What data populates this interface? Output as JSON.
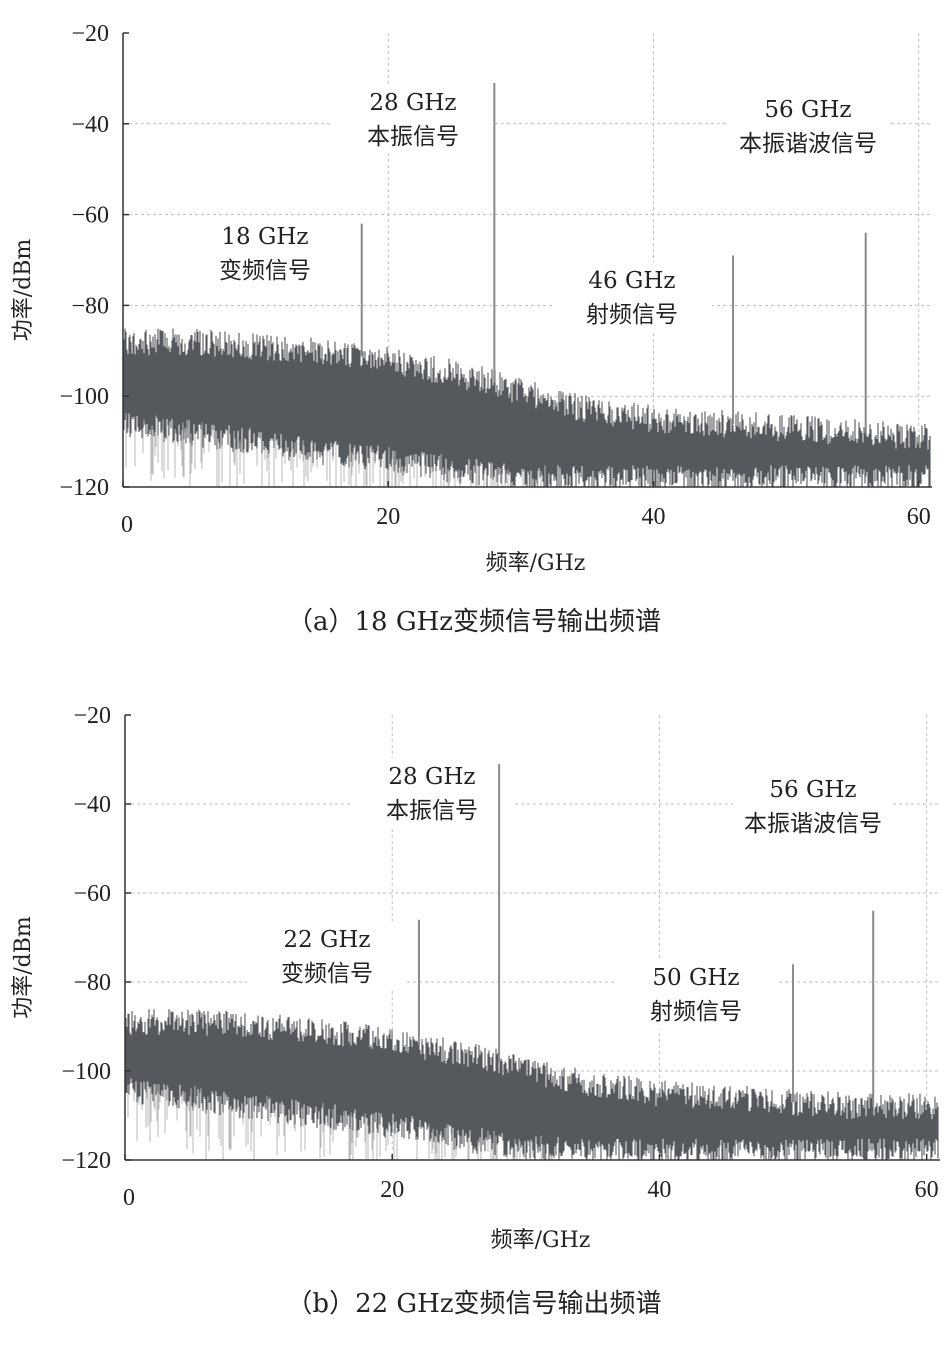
{
  "chart_data": [
    {
      "type": "line",
      "panel": "a",
      "caption": "（a）18 GHz变频信号输出频谱",
      "xlabel": "频率/GHz",
      "ylabel": "功率/dBm",
      "xlim": [
        0,
        61
      ],
      "ylim": [
        -120,
        -20
      ],
      "xticks": [
        0,
        20,
        40,
        60
      ],
      "yticks": [
        -20,
        -40,
        -60,
        -80,
        -100,
        -120
      ],
      "grid": true,
      "noise_floor": {
        "x": [
          0,
          5,
          10,
          15,
          20,
          25,
          28,
          30,
          35,
          40,
          45,
          50,
          55,
          60,
          61
        ],
        "top": [
          -88,
          -88,
          -89,
          -90,
          -92,
          -95,
          -97,
          -99,
          -103,
          -105,
          -106,
          -107,
          -108,
          -109,
          -109
        ],
        "bottom": [
          -108,
          -110,
          -112,
          -114,
          -116,
          -118,
          -119,
          -120,
          -120,
          -120,
          -120,
          -120,
          -120,
          -120,
          -120
        ]
      },
      "peaks": [
        {
          "x": 18,
          "y": -62,
          "annotation": [
            "18 GHz",
            "变频信号"
          ]
        },
        {
          "x": 28,
          "y": -31,
          "annotation": [
            "28 GHz",
            "本振信号"
          ]
        },
        {
          "x": 46,
          "y": -69,
          "annotation": [
            "46 GHz",
            "射频信号"
          ]
        },
        {
          "x": 56,
          "y": -64,
          "annotation": [
            "56 GHz",
            "本振谐波信号"
          ]
        }
      ]
    },
    {
      "type": "line",
      "panel": "b",
      "caption": "（b）22 GHz变频信号输出频谱",
      "xlabel": "频率/GHz",
      "ylabel": "功率/dBm",
      "xlim": [
        0,
        61
      ],
      "ylim": [
        -120,
        -20
      ],
      "xticks": [
        0,
        20,
        40,
        60
      ],
      "yticks": [
        -20,
        -40,
        -60,
        -80,
        -100,
        -120
      ],
      "grid": true,
      "noise_floor": {
        "x": [
          0,
          5,
          10,
          15,
          20,
          25,
          28,
          30,
          35,
          40,
          45,
          50,
          55,
          60,
          61
        ],
        "top": [
          -89,
          -89,
          -90,
          -91,
          -93,
          -96,
          -98,
          -100,
          -103,
          -105,
          -106,
          -107,
          -108,
          -108,
          -108
        ],
        "bottom": [
          -106,
          -108,
          -110,
          -112,
          -114,
          -117,
          -118,
          -119,
          -120,
          -120,
          -120,
          -120,
          -120,
          -120,
          -120
        ]
      },
      "peaks": [
        {
          "x": 22,
          "y": -66,
          "annotation": [
            "22 GHz",
            "变频信号"
          ]
        },
        {
          "x": 28,
          "y": -31,
          "annotation": [
            "28 GHz",
            "本振信号"
          ]
        },
        {
          "x": 50,
          "y": -76,
          "annotation": [
            "50 GHz",
            "射频信号"
          ]
        },
        {
          "x": 56,
          "y": -64,
          "annotation": [
            "56 GHz",
            "本振谐波信号"
          ]
        }
      ]
    }
  ]
}
